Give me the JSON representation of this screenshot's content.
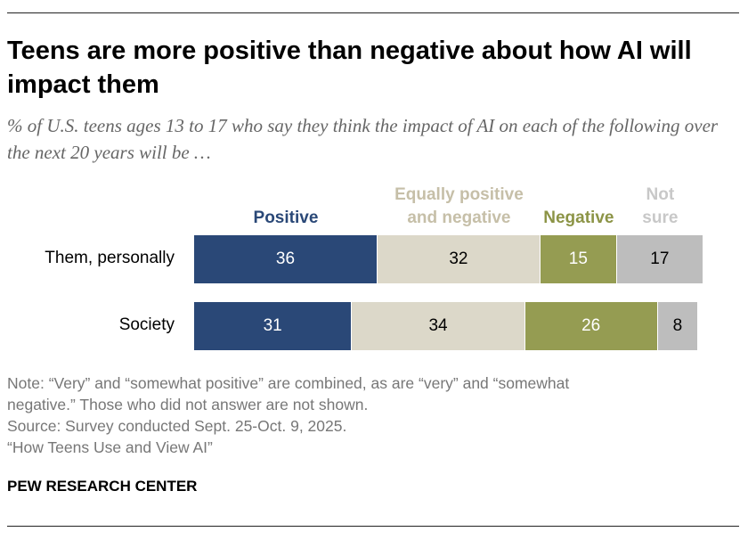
{
  "title": "Teens are more positive than negative about how AI will impact them",
  "subtitle": "% of U.S. teens ages 13 to 17 who say they think the impact of AI on each of the following over the next 20 years will be …",
  "chart_data": {
    "type": "bar",
    "orientation": "horizontal",
    "stacked": true,
    "categories": [
      "Them, personally",
      "Society"
    ],
    "series": [
      {
        "name": "Positive",
        "values": [
          36,
          31
        ],
        "color": "#2a4877",
        "label_color": "#2a4877",
        "text_color": "#ffffff"
      },
      {
        "name": "Equally positive and negative",
        "values": [
          32,
          34
        ],
        "color": "#dcd8c9",
        "label_color": "#c6bfa8",
        "text_color": "#000000"
      },
      {
        "name": "Negative",
        "values": [
          15,
          26
        ],
        "color": "#959c52",
        "label_color": "#8c9446",
        "text_color": "#ffffff"
      },
      {
        "name": "Not sure",
        "values": [
          17,
          8
        ],
        "color": "#bdbdbd",
        "label_color": "#c8c8c8",
        "text_color": "#000000"
      }
    ],
    "legend_lines": [
      [
        "Positive"
      ],
      [
        "Equally positive",
        "and negative"
      ],
      [
        "Negative"
      ],
      [
        "Not",
        "sure"
      ]
    ],
    "legend_placement": "top",
    "xlim": [
      0,
      100
    ],
    "grid": false
  },
  "notes": [
    "Note: “Very” and “somewhat positive” are combined, as are “very” and “somewhat",
    "negative.” Those who did not answer are not shown.",
    "Source: Survey conducted Sept. 25-Oct. 9, 2025.",
    "“How Teens Use and View AI”"
  ],
  "org": "PEW RESEARCH CENTER"
}
